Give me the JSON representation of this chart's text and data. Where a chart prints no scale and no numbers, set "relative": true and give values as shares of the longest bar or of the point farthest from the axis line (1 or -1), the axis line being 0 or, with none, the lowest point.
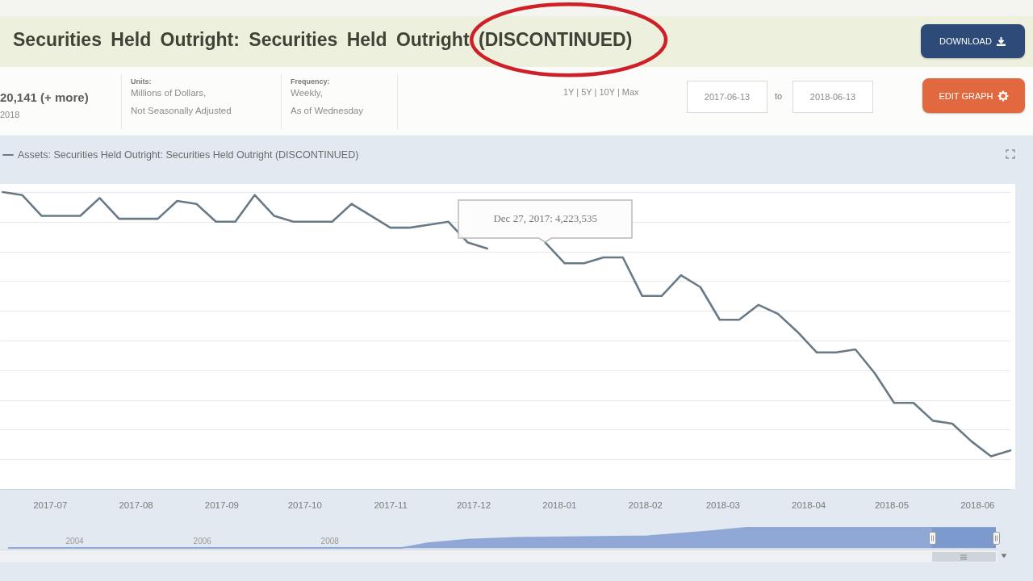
{
  "chart_data": [
    {
      "type": "line",
      "title": "Securities Held Outright: Securities Held Outright (DISCONTINUED)",
      "annotations": [
        {
          "text": "Dec 27, 2017: 4,223,535",
          "x": "2017-12-27",
          "y": 0.83
        },
        "20,141 (+ more)",
        "2018",
        "Units:",
        "Millions of Dollars,",
        "Not Seasonally Adjusted",
        "Frequency:",
        "Weekly,",
        "As of Wednesday",
        "1Y | 5Y | 10Y | Max",
        "2017-06-13",
        "to",
        "2018-06-13",
        "DOWNLOAD",
        "EDIT GRAPH"
      ],
      "x": [
        "2017-06-14",
        "2017-06-21",
        "2017-06-28",
        "2017-07-05",
        "2017-07-12",
        "2017-07-19",
        "2017-07-26",
        "2017-08-02",
        "2017-08-09",
        "2017-08-16",
        "2017-08-23",
        "2017-08-30",
        "2017-09-06",
        "2017-09-13",
        "2017-09-20",
        "2017-09-27",
        "2017-10-04",
        "2017-10-11",
        "2017-10-18",
        "2017-10-25",
        "2017-11-01",
        "2017-11-08",
        "2017-11-15",
        "2017-11-22",
        "2017-11-29",
        "2017-12-06",
        "2017-12-13",
        "2017-12-20",
        "2017-12-27",
        "2018-01-03",
        "2018-01-10",
        "2018-01-17",
        "2018-01-24",
        "2018-01-31",
        "2018-02-07",
        "2018-02-14",
        "2018-02-21",
        "2018-02-28",
        "2018-03-07",
        "2018-03-14",
        "2018-03-21",
        "2018-03-28",
        "2018-04-04",
        "2018-04-11",
        "2018-04-18",
        "2018-04-25",
        "2018-05-02",
        "2018-05-09",
        "2018-05-16",
        "2018-05-23",
        "2018-05-30",
        "2018-06-06",
        "2018-06-13"
      ],
      "series": [
        {
          "name": "Assets: Securities Held Outright: Securities Held Outright (DISCONTINUED)",
          "color": "#687a86",
          "values": [
            1.0,
            0.99,
            0.92,
            0.92,
            0.92,
            0.98,
            0.91,
            0.91,
            0.91,
            0.97,
            0.96,
            0.9,
            0.9,
            0.99,
            0.92,
            0.9,
            0.9,
            0.9,
            0.96,
            0.92,
            0.88,
            0.88,
            0.89,
            0.9,
            0.83,
            0.81,
            null,
            null,
            0.83,
            0.76,
            0.76,
            0.78,
            0.78,
            0.65,
            0.65,
            0.72,
            0.68,
            0.57,
            0.57,
            0.62,
            0.59,
            0.53,
            0.46,
            0.46,
            0.47,
            0.39,
            0.29,
            0.29,
            0.23,
            0.22,
            0.16,
            0.11,
            0.13
          ]
        }
      ],
      "relative": true,
      "xlim": [
        "2017-06-13",
        "2018-06-13"
      ],
      "xticks": [
        "2017-07",
        "2017-08",
        "2017-09",
        "2017-10",
        "2017-11",
        "2017-12",
        "2018-01",
        "2018-02",
        "2018-03",
        "2018-04",
        "2018-05",
        "2018-06"
      ],
      "grid": "y",
      "legend": "top left"
    },
    {
      "type": "area",
      "x": [
        "2002-12-18",
        "2009-02-18",
        "2009-07-15",
        "2010-03-03",
        "2010-12-01",
        "2012-12-26",
        "2014-01-08",
        "2014-07-16",
        "2018-06-13"
      ],
      "series": [
        {
          "color": "#8fa8d6",
          "values": [
            0,
            0,
            0.23,
            0.41,
            0.5,
            0.58,
            0.84,
            1,
            1
          ]
        }
      ],
      "relative": true,
      "xlim": [
        "2002-12-18",
        "2018-06-13"
      ],
      "xticks": [
        "2004",
        "2006",
        "2008"
      ],
      "bands": [
        {
          "axis": "x",
          "from": "2017-06-13",
          "to": "2018-06-13",
          "color": "#6d8cc6"
        }
      ]
    }
  ]
}
